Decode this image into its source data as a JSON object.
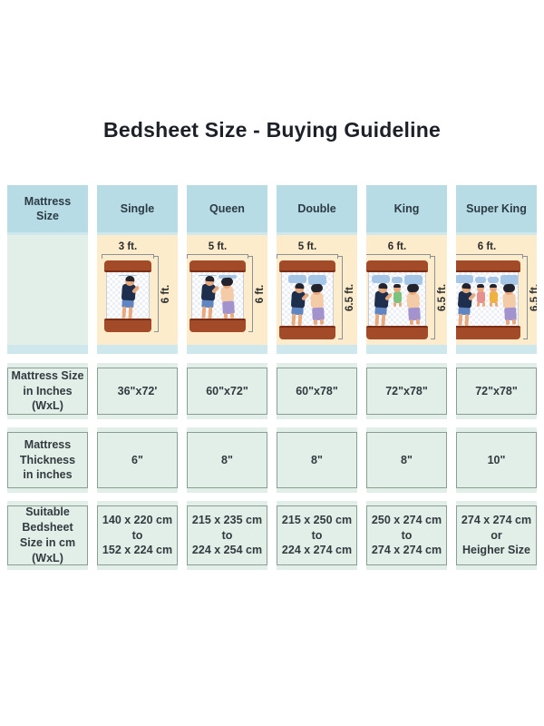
{
  "title": "Bedsheet Size - Buying Guideline",
  "table": {
    "header": {
      "label": "Mattress\nSize",
      "columns": [
        "Single",
        "Queen",
        "Double",
        "King",
        "Super King"
      ]
    },
    "illustrations": [
      {
        "column": "Single",
        "width_ft": "3 ft.",
        "length_ft": "6 ft.",
        "occupants": [
          "man"
        ]
      },
      {
        "column": "Queen",
        "width_ft": "5 ft.",
        "length_ft": "6 ft.",
        "occupants": [
          "man",
          "woman"
        ]
      },
      {
        "column": "Double",
        "width_ft": "5 ft.",
        "length_ft": "6.5 ft.",
        "occupants": [
          "man",
          "woman"
        ]
      },
      {
        "column": "King",
        "width_ft": "6 ft.",
        "length_ft": "6.5 ft.",
        "occupants": [
          "man",
          "baby-green",
          "woman"
        ]
      },
      {
        "column": "Super King",
        "width_ft": "6 ft.",
        "length_ft": "6.5 ft.",
        "occupants": [
          "man",
          "baby-pink",
          "baby-orange",
          "woman"
        ]
      }
    ],
    "rows": [
      {
        "label": "Mattress Size\nin Inches (WxL)",
        "values": [
          "36\"x72'",
          "60\"x72\"",
          "60\"x78\"",
          "72\"x78\"",
          "72\"x78\""
        ]
      },
      {
        "label": "Mattress\nThickness\nin inches",
        "values": [
          "6\"",
          "8\"",
          "8\"",
          "8\"",
          "10\""
        ]
      },
      {
        "label": "Suitable\nBedsheet\nSize in cm (WxL)",
        "values": [
          "140 x 220 cm\nto\n152 x 224 cm",
          "215 x 235 cm\nto\n224 x 254 cm",
          "215 x 250 cm\nto\n224 x 274 cm",
          "250 x 274 cm\nto\n274 x 274 cm",
          "274 x 274 cm\nor\nHeigher Size"
        ]
      }
    ]
  },
  "colors": {
    "header_blue": "#b7dce6",
    "cell_green": "#e2efe9",
    "illustration_cream": "#fdeccb",
    "strip_light_blue": "#cfe8ee",
    "cell_border": "#8a9e93",
    "bed_frame_brown": "#a34b28",
    "pillow_blue": "#a6c6e7",
    "title_text": "#1b2127"
  }
}
